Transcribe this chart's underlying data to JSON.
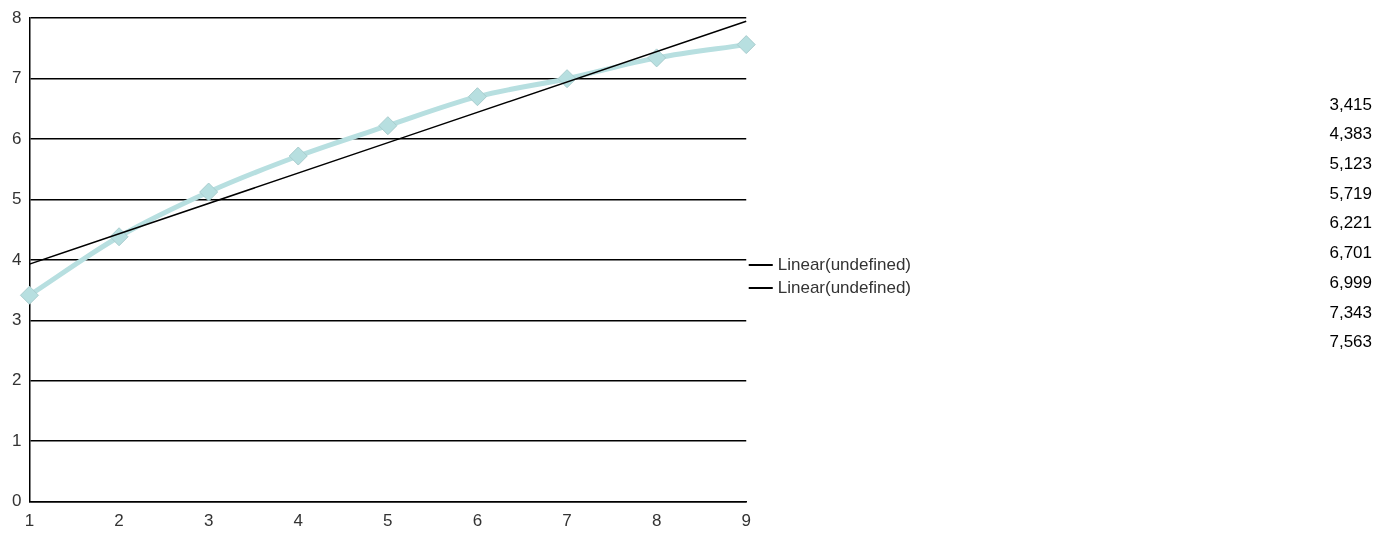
{
  "chart_data": {
    "type": "line",
    "x": [
      1,
      2,
      3,
      4,
      5,
      6,
      7,
      8,
      9
    ],
    "xlim": [
      1,
      9
    ],
    "xticks": [
      1,
      2,
      3,
      4,
      5,
      6,
      7,
      8,
      9
    ],
    "ylim": [
      0,
      8
    ],
    "yticks": [
      0,
      1,
      2,
      3,
      4,
      5,
      6,
      7,
      8
    ],
    "grid": "y",
    "legend": "right",
    "annotations": [
      "3,415",
      "4,383",
      "5,123",
      "5,719",
      "6,221",
      "6,701",
      "6,999",
      "7,343",
      "7,563"
    ],
    "series": [
      {
        "color": "#b7dfe0",
        "marker": "diamond",
        "values": [
          3.415,
          4.383,
          5.123,
          5.719,
          6.221,
          6.701,
          6.999,
          7.343,
          7.563
        ]
      },
      {
        "name": "Linear(undefined)",
        "color": "#000000",
        "marker": "none",
        "x": [
          1,
          9
        ],
        "values": [
          3.93,
          7.95
        ]
      },
      {
        "name": "Linear(undefined)",
        "color": "#000000",
        "marker": "none",
        "values": [
          null,
          null,
          null,
          null,
          null,
          null,
          null,
          null,
          null
        ]
      }
    ]
  }
}
